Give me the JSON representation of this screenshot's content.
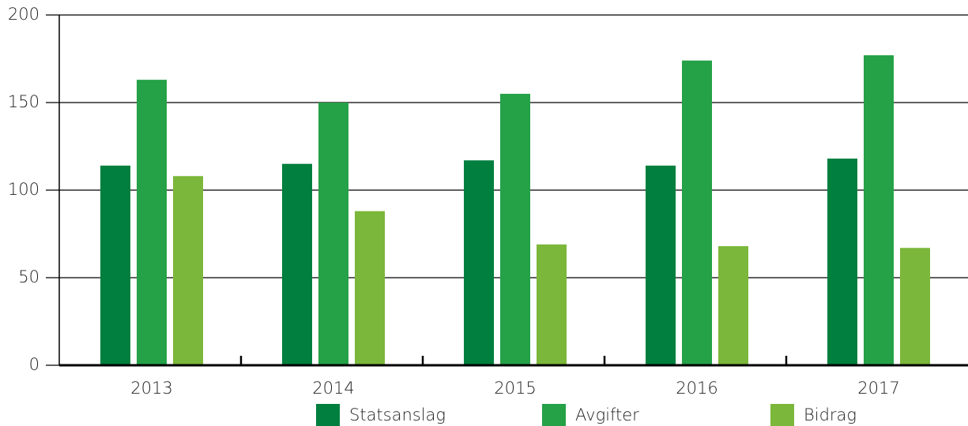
{
  "chart_data": {
    "type": "bar",
    "categories": [
      "2013",
      "2014",
      "2015",
      "2016",
      "2017"
    ],
    "series": [
      {
        "name": "Statsanslag",
        "color": "#007f3e",
        "values": [
          114,
          115,
          117,
          114,
          118
        ]
      },
      {
        "name": "Avgifter",
        "color": "#25a147",
        "values": [
          163,
          150,
          155,
          174,
          177
        ]
      },
      {
        "name": "Bidrag",
        "color": "#7bb73a",
        "values": [
          108,
          88,
          69,
          68,
          67
        ]
      }
    ],
    "ylim": [
      0,
      200
    ],
    "yticks": [
      0,
      50,
      100,
      150,
      200
    ],
    "grid": true,
    "legend": "bottom"
  }
}
